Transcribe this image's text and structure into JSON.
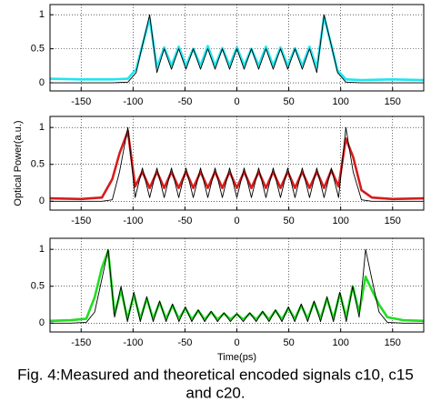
{
  "chart_data": [
    {
      "type": "line",
      "x": [
        -180,
        -150,
        -120,
        -105,
        -97,
        -91,
        -84,
        -77,
        -70,
        -63,
        -56,
        -49,
        -42,
        -35,
        -28,
        -21,
        -14,
        -7,
        0,
        7,
        14,
        21,
        28,
        35,
        42,
        49,
        56,
        63,
        70,
        77,
        84,
        91,
        97,
        105,
        120,
        150,
        180
      ],
      "series": [
        {
          "color": "#1ee6f0",
          "values": [
            0.06,
            0.05,
            0.05,
            0.06,
            0.2,
            0.55,
            0.95,
            0.22,
            0.52,
            0.25,
            0.53,
            0.25,
            0.5,
            0.25,
            0.54,
            0.25,
            0.51,
            0.25,
            0.52,
            0.25,
            0.5,
            0.25,
            0.53,
            0.25,
            0.52,
            0.25,
            0.51,
            0.25,
            0.53,
            0.22,
            0.97,
            0.55,
            0.18,
            0.05,
            0.04,
            0.05,
            0.04
          ]
        },
        {
          "color": "#000000",
          "values": [
            0,
            0,
            0,
            0.01,
            0.15,
            0.55,
            1.0,
            0.15,
            0.5,
            0.2,
            0.5,
            0.2,
            0.5,
            0.2,
            0.5,
            0.2,
            0.5,
            0.2,
            0.5,
            0.2,
            0.5,
            0.2,
            0.5,
            0.2,
            0.5,
            0.2,
            0.5,
            0.2,
            0.5,
            0.15,
            1.0,
            0.55,
            0.15,
            0.01,
            0,
            0,
            0
          ]
        }
      ],
      "xlim": [
        -180,
        180
      ],
      "ylim": [
        -0.12,
        1.15
      ],
      "xticks": [
        -150,
        -100,
        -50,
        0,
        50,
        100,
        150
      ],
      "yticks": [
        0,
        0.5,
        1
      ],
      "grid": true
    },
    {
      "type": "line",
      "ylabel": "Optical Power(a.u.)",
      "x": [
        -180,
        -150,
        -130,
        -120,
        -113,
        -105,
        -98,
        -91,
        -84,
        -77,
        -70,
        -63,
        -56,
        -49,
        -42,
        -35,
        -28,
        -21,
        -14,
        -7,
        0,
        7,
        14,
        21,
        28,
        35,
        42,
        49,
        56,
        63,
        70,
        77,
        84,
        91,
        98,
        105,
        112,
        120,
        130,
        150,
        180
      ],
      "series": [
        {
          "color": "#d61c1c",
          "values": [
            0.04,
            0.03,
            0.05,
            0.3,
            0.65,
            0.95,
            0.2,
            0.4,
            0.18,
            0.4,
            0.18,
            0.4,
            0.18,
            0.4,
            0.18,
            0.4,
            0.18,
            0.4,
            0.18,
            0.4,
            0.18,
            0.4,
            0.18,
            0.4,
            0.18,
            0.4,
            0.18,
            0.4,
            0.18,
            0.4,
            0.18,
            0.4,
            0.18,
            0.42,
            0.2,
            0.85,
            0.6,
            0.15,
            0.05,
            0.03,
            0.04
          ]
        },
        {
          "color": "#000000",
          "values": [
            0,
            0,
            0,
            0.02,
            0.4,
            1.0,
            0.05,
            0.45,
            0.05,
            0.45,
            0.05,
            0.45,
            0.05,
            0.45,
            0.05,
            0.45,
            0.05,
            0.45,
            0.05,
            0.45,
            0.05,
            0.45,
            0.05,
            0.45,
            0.05,
            0.45,
            0.05,
            0.45,
            0.05,
            0.45,
            0.05,
            0.45,
            0.05,
            0.45,
            0.05,
            1.0,
            0.4,
            0.02,
            0,
            0,
            0
          ]
        }
      ],
      "xlim": [
        -180,
        180
      ],
      "ylim": [
        -0.12,
        1.15
      ],
      "xticks": [
        -150,
        -100,
        -50,
        0,
        50,
        100,
        150
      ],
      "yticks": [
        0,
        0.5,
        1
      ],
      "grid": true
    },
    {
      "type": "line",
      "xlabel": "Time(ps)",
      "x": [
        -180,
        -160,
        -145,
        -137,
        -130,
        -124,
        -117.8,
        -111.6,
        -105.4,
        -99.2,
        -93,
        -86.8,
        -80.6,
        -74.4,
        -68.2,
        -62,
        -55.8,
        -49.6,
        -43.4,
        -37.2,
        -31,
        -24.8,
        -18.6,
        -12.4,
        -6.2,
        0,
        6.2,
        12.4,
        18.6,
        24.8,
        31,
        37.2,
        43.4,
        49.6,
        55.8,
        62,
        68.2,
        74.4,
        80.6,
        86.8,
        93,
        99.2,
        105.4,
        111.6,
        117.8,
        124,
        130,
        137,
        145,
        160,
        180
      ],
      "series": [
        {
          "color": "#22dd22",
          "values": [
            0.03,
            0.04,
            0.06,
            0.35,
            0.75,
            0.98,
            0.12,
            0.45,
            0.06,
            0.38,
            0.06,
            0.33,
            0.06,
            0.28,
            0.06,
            0.24,
            0.06,
            0.2,
            0.05,
            0.17,
            0.05,
            0.15,
            0.05,
            0.13,
            0.05,
            0.12,
            0.05,
            0.13,
            0.05,
            0.15,
            0.05,
            0.17,
            0.05,
            0.2,
            0.06,
            0.24,
            0.06,
            0.28,
            0.06,
            0.33,
            0.06,
            0.4,
            0.08,
            0.5,
            0.15,
            0.63,
            0.45,
            0.25,
            0.08,
            0.04,
            0.03
          ]
        },
        {
          "color": "#000000",
          "values": [
            0,
            0,
            0.01,
            0.15,
            0.6,
            1.0,
            0.08,
            0.5,
            0.02,
            0.42,
            0.02,
            0.36,
            0.02,
            0.3,
            0.02,
            0.26,
            0.02,
            0.22,
            0.02,
            0.18,
            0.02,
            0.16,
            0.02,
            0.14,
            0.02,
            0.13,
            0.02,
            0.14,
            0.02,
            0.16,
            0.02,
            0.18,
            0.02,
            0.22,
            0.02,
            0.26,
            0.02,
            0.3,
            0.02,
            0.36,
            0.02,
            0.42,
            0.02,
            0.5,
            0.08,
            1.0,
            0.6,
            0.15,
            0.01,
            0,
            0
          ]
        }
      ],
      "xlim": [
        -180,
        180
      ],
      "ylim": [
        -0.12,
        1.15
      ],
      "xticks": [
        -150,
        -100,
        -50,
        0,
        50,
        100,
        150
      ],
      "yticks": [
        0,
        0.5,
        1
      ],
      "grid": true
    }
  ],
  "caption": [
    "Fig. 4:Measured and theoretical encoded signals c10, c15",
    "and c20."
  ]
}
